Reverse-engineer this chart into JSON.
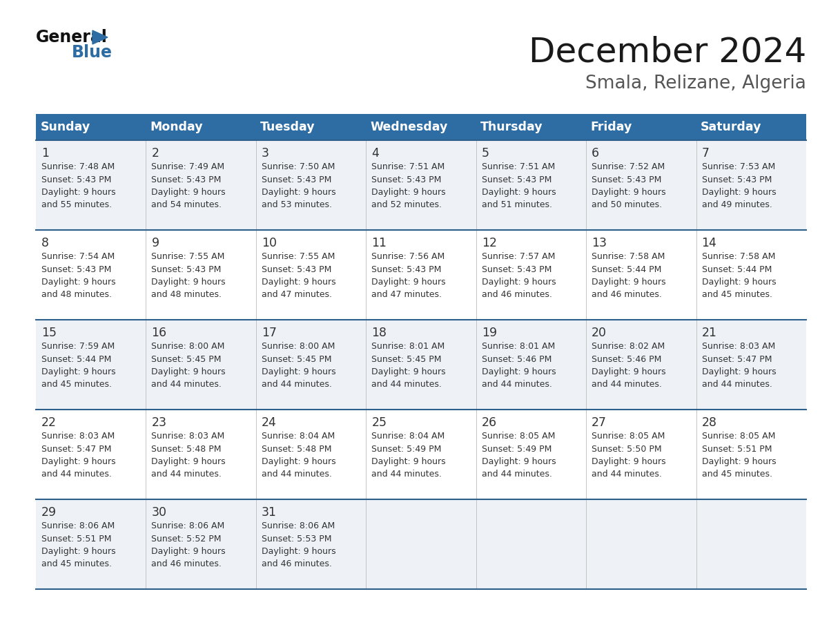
{
  "title": "December 2024",
  "subtitle": "Smala, Relizane, Algeria",
  "header_color": "#2e6da4",
  "header_text_color": "#ffffff",
  "day_names": [
    "Sunday",
    "Monday",
    "Tuesday",
    "Wednesday",
    "Thursday",
    "Friday",
    "Saturday"
  ],
  "bg_color": "#ffffff",
  "cell_bg_even": "#eef2f7",
  "cell_bg_odd": "#ffffff",
  "row_line_color": "#2e5f8a",
  "grid_line_color": "#bbbbbb",
  "text_color": "#333333",
  "day_num_color": "#333333",
  "calendar": [
    [
      {
        "day": 1,
        "sunrise": "7:48 AM",
        "sunset": "5:43 PM",
        "dl_mins": "55 minutes."
      },
      {
        "day": 2,
        "sunrise": "7:49 AM",
        "sunset": "5:43 PM",
        "dl_mins": "54 minutes."
      },
      {
        "day": 3,
        "sunrise": "7:50 AM",
        "sunset": "5:43 PM",
        "dl_mins": "53 minutes."
      },
      {
        "day": 4,
        "sunrise": "7:51 AM",
        "sunset": "5:43 PM",
        "dl_mins": "52 minutes."
      },
      {
        "day": 5,
        "sunrise": "7:51 AM",
        "sunset": "5:43 PM",
        "dl_mins": "51 minutes."
      },
      {
        "day": 6,
        "sunrise": "7:52 AM",
        "sunset": "5:43 PM",
        "dl_mins": "50 minutes."
      },
      {
        "day": 7,
        "sunrise": "7:53 AM",
        "sunset": "5:43 PM",
        "dl_mins": "49 minutes."
      }
    ],
    [
      {
        "day": 8,
        "sunrise": "7:54 AM",
        "sunset": "5:43 PM",
        "dl_mins": "48 minutes."
      },
      {
        "day": 9,
        "sunrise": "7:55 AM",
        "sunset": "5:43 PM",
        "dl_mins": "48 minutes."
      },
      {
        "day": 10,
        "sunrise": "7:55 AM",
        "sunset": "5:43 PM",
        "dl_mins": "47 minutes."
      },
      {
        "day": 11,
        "sunrise": "7:56 AM",
        "sunset": "5:43 PM",
        "dl_mins": "47 minutes."
      },
      {
        "day": 12,
        "sunrise": "7:57 AM",
        "sunset": "5:43 PM",
        "dl_mins": "46 minutes."
      },
      {
        "day": 13,
        "sunrise": "7:58 AM",
        "sunset": "5:44 PM",
        "dl_mins": "46 minutes."
      },
      {
        "day": 14,
        "sunrise": "7:58 AM",
        "sunset": "5:44 PM",
        "dl_mins": "45 minutes."
      }
    ],
    [
      {
        "day": 15,
        "sunrise": "7:59 AM",
        "sunset": "5:44 PM",
        "dl_mins": "45 minutes."
      },
      {
        "day": 16,
        "sunrise": "8:00 AM",
        "sunset": "5:45 PM",
        "dl_mins": "44 minutes."
      },
      {
        "day": 17,
        "sunrise": "8:00 AM",
        "sunset": "5:45 PM",
        "dl_mins": "44 minutes."
      },
      {
        "day": 18,
        "sunrise": "8:01 AM",
        "sunset": "5:45 PM",
        "dl_mins": "44 minutes."
      },
      {
        "day": 19,
        "sunrise": "8:01 AM",
        "sunset": "5:46 PM",
        "dl_mins": "44 minutes."
      },
      {
        "day": 20,
        "sunrise": "8:02 AM",
        "sunset": "5:46 PM",
        "dl_mins": "44 minutes."
      },
      {
        "day": 21,
        "sunrise": "8:03 AM",
        "sunset": "5:47 PM",
        "dl_mins": "44 minutes."
      }
    ],
    [
      {
        "day": 22,
        "sunrise": "8:03 AM",
        "sunset": "5:47 PM",
        "dl_mins": "44 minutes."
      },
      {
        "day": 23,
        "sunrise": "8:03 AM",
        "sunset": "5:48 PM",
        "dl_mins": "44 minutes."
      },
      {
        "day": 24,
        "sunrise": "8:04 AM",
        "sunset": "5:48 PM",
        "dl_mins": "44 minutes."
      },
      {
        "day": 25,
        "sunrise": "8:04 AM",
        "sunset": "5:49 PM",
        "dl_mins": "44 minutes."
      },
      {
        "day": 26,
        "sunrise": "8:05 AM",
        "sunset": "5:49 PM",
        "dl_mins": "44 minutes."
      },
      {
        "day": 27,
        "sunrise": "8:05 AM",
        "sunset": "5:50 PM",
        "dl_mins": "44 minutes."
      },
      {
        "day": 28,
        "sunrise": "8:05 AM",
        "sunset": "5:51 PM",
        "dl_mins": "45 minutes."
      }
    ],
    [
      {
        "day": 29,
        "sunrise": "8:06 AM",
        "sunset": "5:51 PM",
        "dl_mins": "45 minutes."
      },
      {
        "day": 30,
        "sunrise": "8:06 AM",
        "sunset": "5:52 PM",
        "dl_mins": "46 minutes."
      },
      {
        "day": 31,
        "sunrise": "8:06 AM",
        "sunset": "5:53 PM",
        "dl_mins": "46 minutes."
      },
      null,
      null,
      null,
      null
    ]
  ],
  "logo_general_color": "#111111",
  "logo_blue_color": "#2e6da4",
  "logo_triangle_color": "#2e6da4"
}
